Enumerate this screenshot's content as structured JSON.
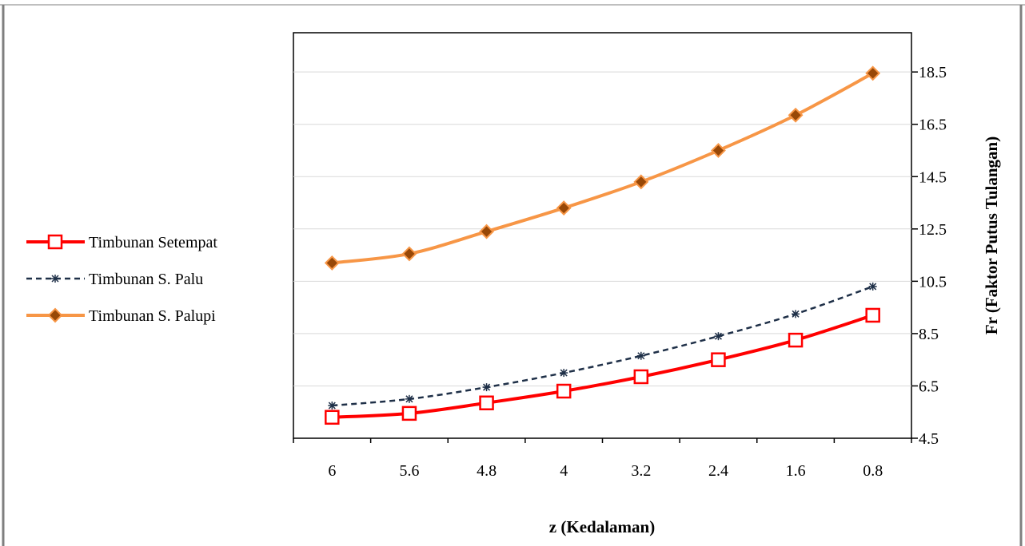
{
  "chart_data": {
    "type": "line",
    "xlabel": "z (Kedalaman)",
    "ylabel": "Fr (Faktor Putus Tulangan)",
    "categories": [
      "6",
      "5.6",
      "4.8",
      "4",
      "3.2",
      "2.4",
      "1.6",
      "0.8"
    ],
    "y_ticks": [
      "4.5",
      "6.5",
      "8.5",
      "10.5",
      "12.5",
      "14.5",
      "16.5",
      "18.5"
    ],
    "ylim": [
      4.5,
      20.0
    ],
    "y_axis_side": "right",
    "grid": "horizontal",
    "legend_position": "left",
    "series": [
      {
        "name": "Timbunan Setempat",
        "values": [
          5.3,
          5.45,
          5.85,
          6.3,
          6.85,
          7.5,
          8.25,
          9.2
        ],
        "color": "#ff0000",
        "marker": "square",
        "line_style": "solid"
      },
      {
        "name": "Timbunan S. Palu",
        "values": [
          5.75,
          6.0,
          6.45,
          7.0,
          7.65,
          8.4,
          9.25,
          10.3
        ],
        "color": "#1f3048",
        "marker": "asterisk",
        "line_style": "dashed"
      },
      {
        "name": "Timbunan S. Palupi",
        "values": [
          11.2,
          11.55,
          12.4,
          13.3,
          14.3,
          15.5,
          16.85,
          18.45
        ],
        "color": "#f79646",
        "marker": "diamond",
        "marker_color": "#984807",
        "line_style": "solid"
      }
    ]
  }
}
